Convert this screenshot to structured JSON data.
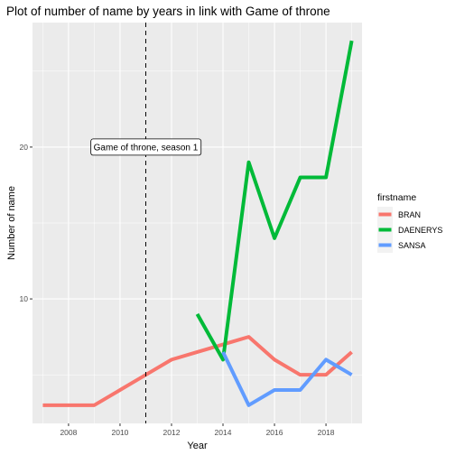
{
  "chart_data": {
    "type": "line",
    "title": "Plot of number of name by years in link with Game of throne",
    "xlabel": "Year",
    "ylabel": "Number of name",
    "xlim": [
      2006.6,
      2019.4
    ],
    "ylim": [
      1.8,
      28.2
    ],
    "x_ticks": [
      2008,
      2010,
      2012,
      2014,
      2016,
      2018
    ],
    "y_ticks": [
      10,
      20
    ],
    "grid": true,
    "legend": {
      "title": "firstname",
      "position": "right"
    },
    "series": [
      {
        "name": "BRAN",
        "color": "#F8766D",
        "x": [
          2007,
          2008,
          2009,
          2010,
          2011,
          2012,
          2013,
          2014,
          2015,
          2016,
          2017,
          2018,
          2019
        ],
        "y": [
          3,
          3,
          3,
          4,
          5,
          6,
          6.5,
          7,
          7.5,
          6,
          5,
          5,
          6.5
        ]
      },
      {
        "name": "DAENERYS",
        "color": "#00BA38",
        "x": [
          2013,
          2014,
          2015,
          2016,
          2017,
          2018,
          2019
        ],
        "y": [
          9,
          6,
          19,
          14,
          18,
          18,
          27
        ]
      },
      {
        "name": "SANSA",
        "color": "#619CFF",
        "x": [
          2014,
          2015,
          2016,
          2017,
          2018,
          2019
        ],
        "y": [
          6.5,
          3,
          4,
          4,
          6,
          5
        ]
      }
    ],
    "annotations": [
      {
        "type": "vline",
        "x": 2011,
        "style": "dashed",
        "color": "#000000"
      },
      {
        "type": "label",
        "text": "Game of throne, season 1",
        "x": 2011,
        "y": 20
      }
    ]
  }
}
